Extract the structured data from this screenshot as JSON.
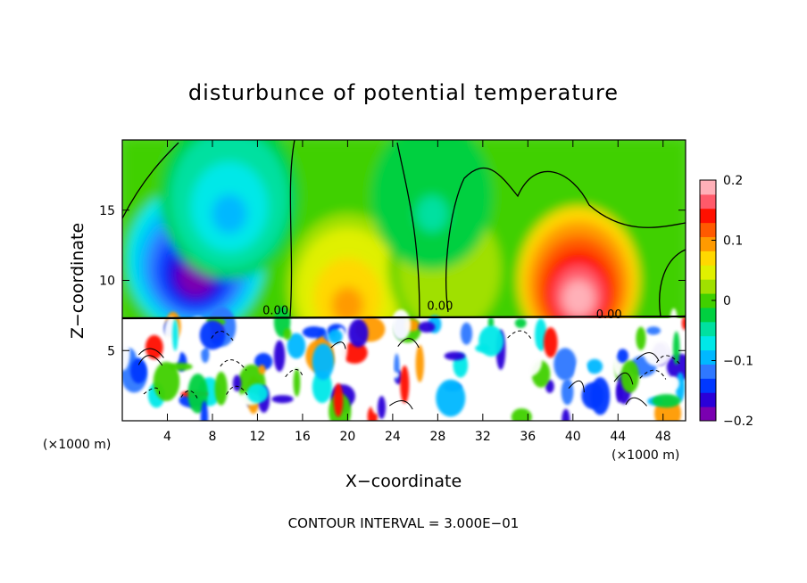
{
  "chart_data": {
    "type": "heatmap",
    "title": "disturbunce of potential temperature",
    "xlabel": "X−coordinate",
    "ylabel": "Z−coordinate",
    "x_unit_left": "(×1000 m)",
    "x_unit_right": "(×1000 m)",
    "footer": "CONTOUR INTERVAL = 3.000E−01",
    "xlim": [
      0,
      50
    ],
    "ylim": [
      0,
      20
    ],
    "x_ticks": [
      4,
      8,
      12,
      16,
      20,
      24,
      28,
      32,
      36,
      40,
      44,
      48
    ],
    "x_tick_labels": [
      "4",
      "8",
      "12",
      "16",
      "20",
      "24",
      "28",
      "32",
      "36",
      "40",
      "44",
      "48"
    ],
    "y_ticks": [
      5,
      10,
      15
    ],
    "y_tick_labels": [
      "5",
      "10",
      "15"
    ],
    "contour_labels": [
      {
        "text": "0.00",
        "x": 13.6,
        "y": 7.6
      },
      {
        "text": "0.00",
        "x": 28.2,
        "y": 7.9
      },
      {
        "text": "0.00",
        "x": 43.2,
        "y": 7.3
      }
    ],
    "colorbar": {
      "min": -0.2,
      "max": 0.2,
      "tick_values": [
        0.2,
        0.1,
        0,
        -0.1,
        -0.2
      ],
      "tick_labels": [
        "0.2",
        "0.1",
        "0",
        "−0.1",
        "−0.2"
      ],
      "colors": [
        "#7a00b0",
        "#2a00d8",
        "#0038ff",
        "#2f78ff",
        "#00b8ff",
        "#00e8e8",
        "#00e0a0",
        "#00d040",
        "#40d000",
        "#a0e000",
        "#e0f000",
        "#ffd800",
        "#ff9a00",
        "#ff5a00",
        "#ff1000",
        "#ff5a6a",
        "#ffb0b8"
      ]
    },
    "fields": {
      "upper_background": 0.0,
      "features": [
        {
          "desc": "cold anomaly",
          "x": 6.5,
          "z": 11.5,
          "value": -0.2
        },
        {
          "desc": "cold tongue",
          "x": 9.5,
          "z": 16.0,
          "value": -0.09
        },
        {
          "desc": "warm anomaly",
          "x": 40.5,
          "z": 10.0,
          "value": 0.2
        },
        {
          "desc": "warm patch",
          "x": 20.0,
          "z": 9.5,
          "value": 0.09
        },
        {
          "desc": "weak warm",
          "x": 29.0,
          "z": 11.0,
          "value": 0.03
        },
        {
          "desc": "weak cold",
          "x": 27.5,
          "z": 16.0,
          "value": -0.04
        }
      ],
      "interface_height": 7.3
    }
  }
}
